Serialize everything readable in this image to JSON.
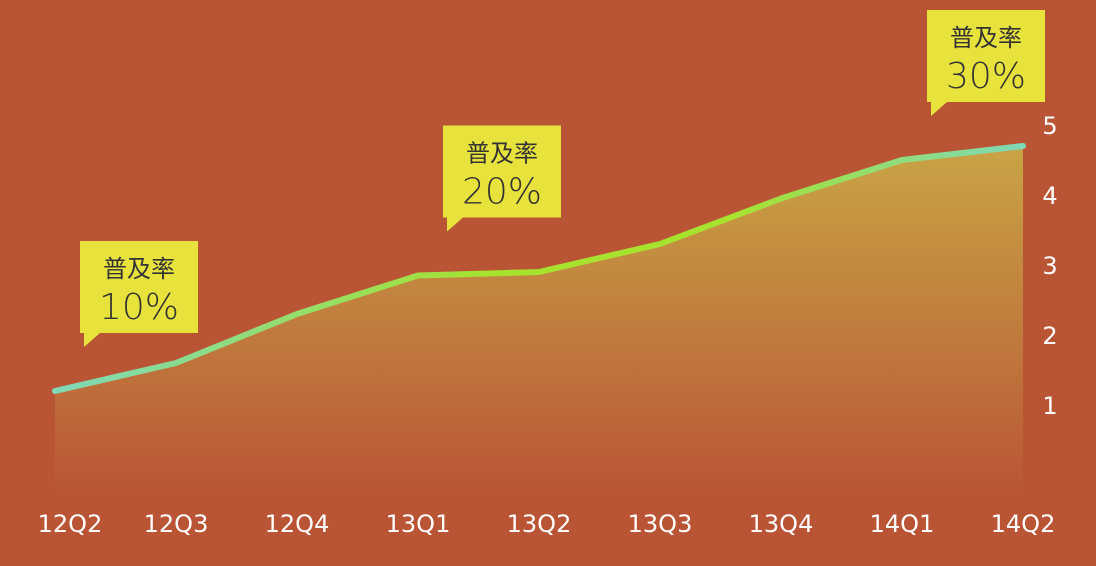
{
  "chart_data": {
    "type": "area",
    "categories": [
      "12Q2",
      "12Q3",
      "12Q4",
      "13Q1",
      "13Q2",
      "13Q3",
      "13Q4",
      "14Q1",
      "14Q2"
    ],
    "values": [
      1.2,
      1.6,
      2.3,
      2.85,
      2.9,
      3.3,
      3.95,
      4.5,
      4.7
    ],
    "ylim": [
      0,
      5
    ],
    "yticks": [
      1,
      2,
      3,
      4,
      5
    ],
    "grid": false,
    "annotations": [
      {
        "category": "12Q2",
        "line1": "普及率",
        "line2": "10%"
      },
      {
        "category": "13Q1",
        "line1": "普及率",
        "line2": "20%"
      },
      {
        "category": "14Q1",
        "line1": "普及率",
        "line2": "30%"
      }
    ]
  },
  "colors": {
    "background": "#b95535",
    "fill_top": "#c9a845",
    "fill_bottom": "#b95535",
    "line_start": "#7fd8b8",
    "line_mid": "#a6e22e",
    "line_end": "#7fd8b8",
    "callout": "#e8e23c",
    "text": "#ffffff",
    "drop_line": "#e8c9a8"
  }
}
